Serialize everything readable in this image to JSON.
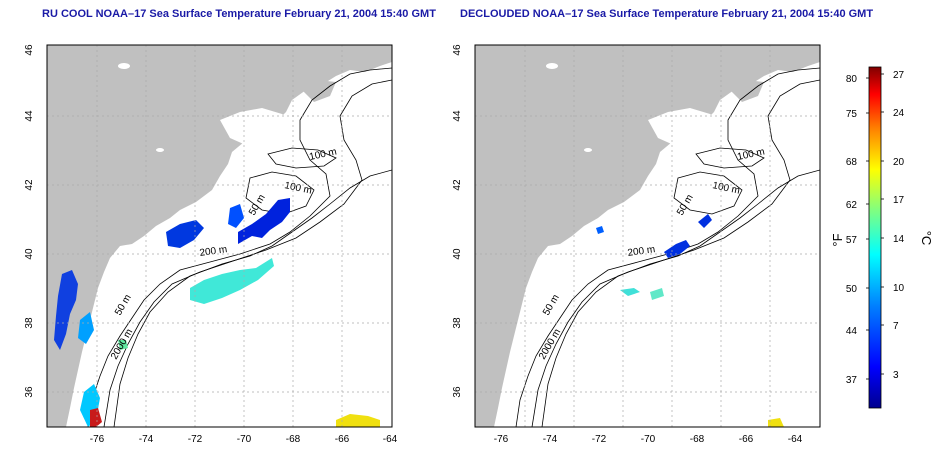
{
  "panels": [
    {
      "title": "RU COOL NOAA–17 Sea Surface Temperature February 21, 2004 15:40 GMT",
      "x_ticks": [
        "-76",
        "-74",
        "-72",
        "-70",
        "-68",
        "-66",
        "-64"
      ],
      "y_ticks": [
        "46",
        "44",
        "42",
        "40",
        "38",
        "36"
      ],
      "contour_labels": [
        "100 m",
        "100 m",
        "50 m",
        "200 m",
        "50 m",
        "2000 m"
      ]
    },
    {
      "title": "DECLOUDED NOAA–17 Sea Surface Temperature February 21, 2004 15:40 GMT",
      "x_ticks": [
        "-76",
        "-74",
        "-72",
        "-70",
        "-68",
        "-66",
        "-64"
      ],
      "y_ticks": [
        "46",
        "44",
        "42",
        "40",
        "38",
        "36"
      ],
      "contour_labels": [
        "100 m",
        "100 m",
        "50 m",
        "200 m",
        "50 m",
        "2000 m"
      ]
    }
  ],
  "colorbar": {
    "f_label": "°F",
    "c_label": "°C",
    "f_ticks": [
      "80",
      "75",
      "68",
      "62",
      "57",
      "50",
      "44",
      "37"
    ],
    "c_ticks": [
      "27",
      "24",
      "20",
      "17",
      "14",
      "10",
      "7",
      "3"
    ],
    "colors": [
      "#00008f",
      "#0000ff",
      "#0080ff",
      "#00ffff",
      "#80ff80",
      "#ffff00",
      "#ff8000",
      "#ff0000",
      "#800000"
    ]
  },
  "colors": {
    "land": "#c0c0c0",
    "ocean": "#ffffff",
    "title": "#1a1aa6",
    "contour": "#000000"
  }
}
